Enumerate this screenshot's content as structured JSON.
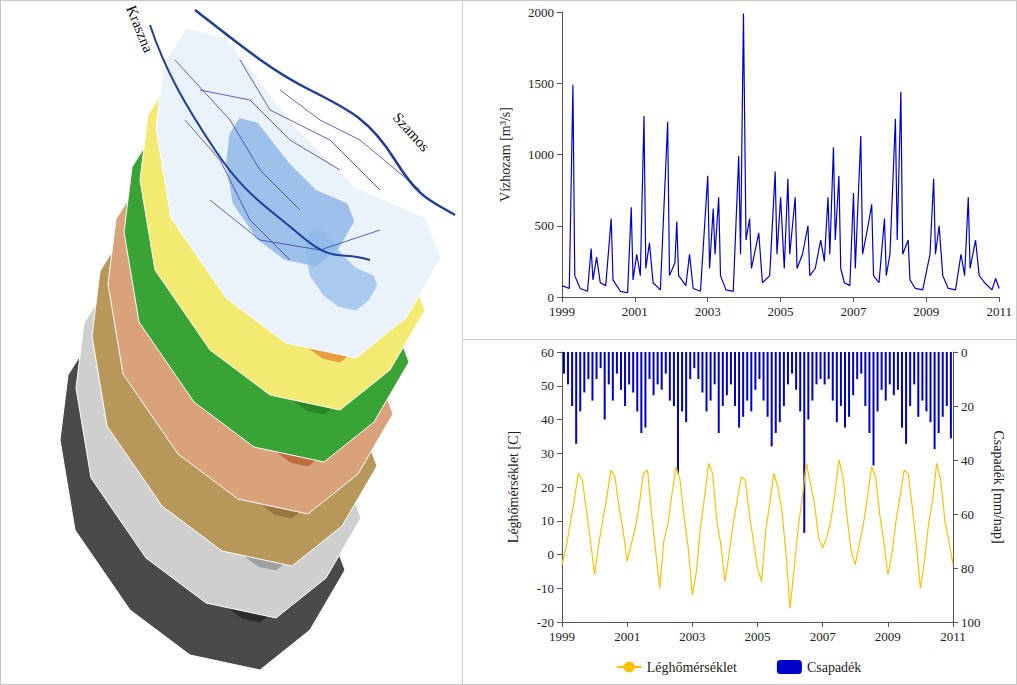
{
  "map": {
    "labels": [
      "Kraszna",
      "Szamos"
    ]
  },
  "chart_data": [
    {
      "type": "line",
      "ylabel": "Vízhozam [m³/s]",
      "color": "#0000cc",
      "grid": false,
      "xlim": [
        1999,
        2011
      ],
      "xticks": [
        1999,
        2001,
        2003,
        2005,
        2007,
        2009,
        2011
      ],
      "ylim": [
        0,
        2000
      ],
      "yticks": [
        0,
        500,
        1000,
        1500,
        2000
      ],
      "x": [
        1999,
        1999.2,
        1999.3,
        1999.35,
        1999.5,
        1999.7,
        1999.8,
        1999.85,
        1999.95,
        2000.05,
        2000.2,
        2000.35,
        2000.4,
        2000.6,
        2000.8,
        2000.9,
        2000.95,
        2001.05,
        2001.15,
        2001.25,
        2001.3,
        2001.4,
        2001.5,
        2001.7,
        2001.9,
        2001.95,
        2002.1,
        2002.15,
        2002.2,
        2002.4,
        2002.5,
        2002.6,
        2002.8,
        2003,
        2003.05,
        2003.15,
        2003.2,
        2003.3,
        2003.35,
        2003.5,
        2003.7,
        2003.85,
        2003.9,
        2003.98,
        2004.05,
        2004.15,
        2004.2,
        2004.4,
        2004.5,
        2004.7,
        2004.85,
        2004.9,
        2005,
        2005.1,
        2005.2,
        2005.25,
        2005.4,
        2005.45,
        2005.6,
        2005.75,
        2005.8,
        2005.95,
        2006.1,
        2006.2,
        2006.3,
        2006.35,
        2006.45,
        2006.5,
        2006.6,
        2006.65,
        2006.75,
        2006.9,
        2007,
        2007.05,
        2007.2,
        2007.25,
        2007.4,
        2007.5,
        2007.55,
        2007.7,
        2007.85,
        2007.9,
        2008,
        2008.15,
        2008.2,
        2008.3,
        2008.35,
        2008.5,
        2008.55,
        2008.7,
        2008.9,
        2009.1,
        2009.2,
        2009.25,
        2009.35,
        2009.45,
        2009.6,
        2009.8,
        2009.95,
        2010.05,
        2010.15,
        2010.2,
        2010.35,
        2010.45,
        2010.6,
        2010.8,
        2010.9,
        2011
      ],
      "values": [
        80,
        60,
        1490,
        150,
        60,
        40,
        340,
        120,
        280,
        100,
        80,
        550,
        120,
        40,
        30,
        630,
        120,
        300,
        150,
        1270,
        200,
        380,
        100,
        50,
        1230,
        150,
        240,
        530,
        150,
        80,
        300,
        60,
        40,
        850,
        200,
        620,
        300,
        700,
        150,
        50,
        40,
        990,
        300,
        1990,
        400,
        550,
        200,
        450,
        100,
        150,
        880,
        300,
        700,
        200,
        830,
        300,
        700,
        200,
        300,
        500,
        150,
        200,
        400,
        250,
        700,
        300,
        1050,
        400,
        850,
        200,
        100,
        80,
        730,
        200,
        1130,
        300,
        500,
        650,
        150,
        100,
        550,
        150,
        300,
        1250,
        400,
        1440,
        300,
        400,
        120,
        60,
        50,
        300,
        830,
        300,
        500,
        150,
        60,
        50,
        300,
        150,
        700,
        200,
        400,
        150,
        100,
        50,
        130,
        60
      ]
    },
    {
      "type": "line",
      "ylabel": "Léghőmérséklet [C]",
      "y2label": "Csapadék [mm/nap]",
      "grid": false,
      "legend": "bottom",
      "xlim": [
        1999,
        2011
      ],
      "xticks": [
        1999,
        2001,
        2003,
        2005,
        2007,
        2009,
        2011
      ],
      "ylim": [
        -20,
        60
      ],
      "yticks": [
        -20,
        -10,
        0,
        10,
        20,
        30,
        40,
        50,
        60
      ],
      "y2lim": [
        0,
        100
      ],
      "y2ticks": [
        0,
        20,
        40,
        60,
        80,
        100
      ],
      "series": [
        {
          "name": "Léghőmérséklet",
          "type": "line",
          "color": "#ffc000",
          "x": [
            1999,
            1999.125,
            1999.25,
            1999.375,
            1999.5,
            1999.625,
            1999.75,
            1999.875,
            2000,
            2000.125,
            2000.25,
            2000.375,
            2000.5,
            2000.625,
            2000.75,
            2000.875,
            2001,
            2001.125,
            2001.25,
            2001.375,
            2001.5,
            2001.625,
            2001.75,
            2001.875,
            2002,
            2002.125,
            2002.25,
            2002.375,
            2002.5,
            2002.625,
            2002.75,
            2002.875,
            2003,
            2003.125,
            2003.25,
            2003.375,
            2003.5,
            2003.625,
            2003.75,
            2003.875,
            2004,
            2004.125,
            2004.25,
            2004.375,
            2004.5,
            2004.625,
            2004.75,
            2004.875,
            2005,
            2005.125,
            2005.25,
            2005.375,
            2005.5,
            2005.625,
            2005.75,
            2005.875,
            2006,
            2006.125,
            2006.25,
            2006.375,
            2006.5,
            2006.625,
            2006.75,
            2006.875,
            2007,
            2007.125,
            2007.25,
            2007.375,
            2007.5,
            2007.625,
            2007.75,
            2007.875,
            2008,
            2008.125,
            2008.25,
            2008.375,
            2008.5,
            2008.625,
            2008.75,
            2008.875,
            2009,
            2009.125,
            2009.25,
            2009.375,
            2009.5,
            2009.625,
            2009.75,
            2009.875,
            2010,
            2010.125,
            2010.25,
            2010.375,
            2010.5,
            2010.625,
            2010.75,
            2010.875,
            2011
          ],
          "values": [
            -3,
            2,
            9,
            16,
            24,
            22,
            13,
            4,
            -6,
            3,
            10,
            17,
            25,
            23,
            14,
            7,
            -2,
            3,
            8,
            15,
            24,
            25,
            12,
            1,
            -10,
            4,
            9,
            18,
            26,
            22,
            11,
            2,
            -12,
            -5,
            8,
            17,
            27,
            24,
            10,
            3,
            -8,
            0,
            9,
            16,
            23,
            22,
            12,
            4,
            -4,
            -8,
            7,
            15,
            24,
            20,
            13,
            0,
            -16,
            -4,
            8,
            17,
            27,
            21,
            15,
            5,
            2,
            5,
            10,
            18,
            28,
            23,
            11,
            1,
            -3,
            3,
            9,
            17,
            26,
            23,
            12,
            4,
            -6,
            0,
            10,
            17,
            25,
            24,
            14,
            3,
            -10,
            -2,
            9,
            16,
            27,
            22,
            10,
            4,
            -3
          ]
        },
        {
          "name": "Csapadék",
          "type": "bar",
          "axis": "y2",
          "color": "#0000cc",
          "x": [
            1999.06,
            1999.185,
            1999.31,
            1999.435,
            1999.56,
            1999.685,
            1999.81,
            1999.935,
            2000.06,
            2000.185,
            2000.31,
            2000.435,
            2000.56,
            2000.685,
            2000.81,
            2000.935,
            2001.06,
            2001.185,
            2001.31,
            2001.435,
            2001.56,
            2001.685,
            2001.81,
            2001.935,
            2002.06,
            2002.185,
            2002.31,
            2002.435,
            2002.56,
            2002.685,
            2002.81,
            2002.935,
            2003.06,
            2003.185,
            2003.31,
            2003.435,
            2003.56,
            2003.685,
            2003.81,
            2003.935,
            2004.06,
            2004.185,
            2004.31,
            2004.435,
            2004.56,
            2004.685,
            2004.81,
            2004.935,
            2005.06,
            2005.185,
            2005.31,
            2005.435,
            2005.56,
            2005.685,
            2005.81,
            2005.935,
            2006.06,
            2006.185,
            2006.31,
            2006.435,
            2006.56,
            2006.685,
            2006.81,
            2006.935,
            2007.06,
            2007.185,
            2007.31,
            2007.435,
            2007.56,
            2007.685,
            2007.81,
            2007.935,
            2008.06,
            2008.185,
            2008.31,
            2008.435,
            2008.56,
            2008.685,
            2008.81,
            2008.935,
            2009.06,
            2009.185,
            2009.31,
            2009.435,
            2009.56,
            2009.685,
            2009.81,
            2009.935,
            2010.06,
            2010.185,
            2010.31,
            2010.435,
            2010.56,
            2010.685,
            2010.81,
            2010.935
          ],
          "values": [
            8,
            12,
            20,
            34,
            22,
            15,
            10,
            18,
            10,
            6,
            25,
            12,
            18,
            8,
            14,
            20,
            12,
            15,
            22,
            30,
            28,
            10,
            16,
            12,
            14,
            8,
            18,
            20,
            45,
            22,
            26,
            10,
            6,
            10,
            15,
            22,
            18,
            12,
            30,
            20,
            16,
            12,
            20,
            28,
            24,
            18,
            22,
            14,
            10,
            18,
            24,
            35,
            30,
            26,
            20,
            12,
            8,
            14,
            22,
            67,
            25,
            18,
            12,
            10,
            12,
            10,
            18,
            26,
            20,
            28,
            24,
            16,
            10,
            8,
            20,
            30,
            42,
            22,
            14,
            18,
            12,
            16,
            14,
            28,
            34,
            20,
            12,
            24,
            18,
            22,
            26,
            36,
            30,
            24,
            20,
            32
          ]
        }
      ]
    }
  ]
}
